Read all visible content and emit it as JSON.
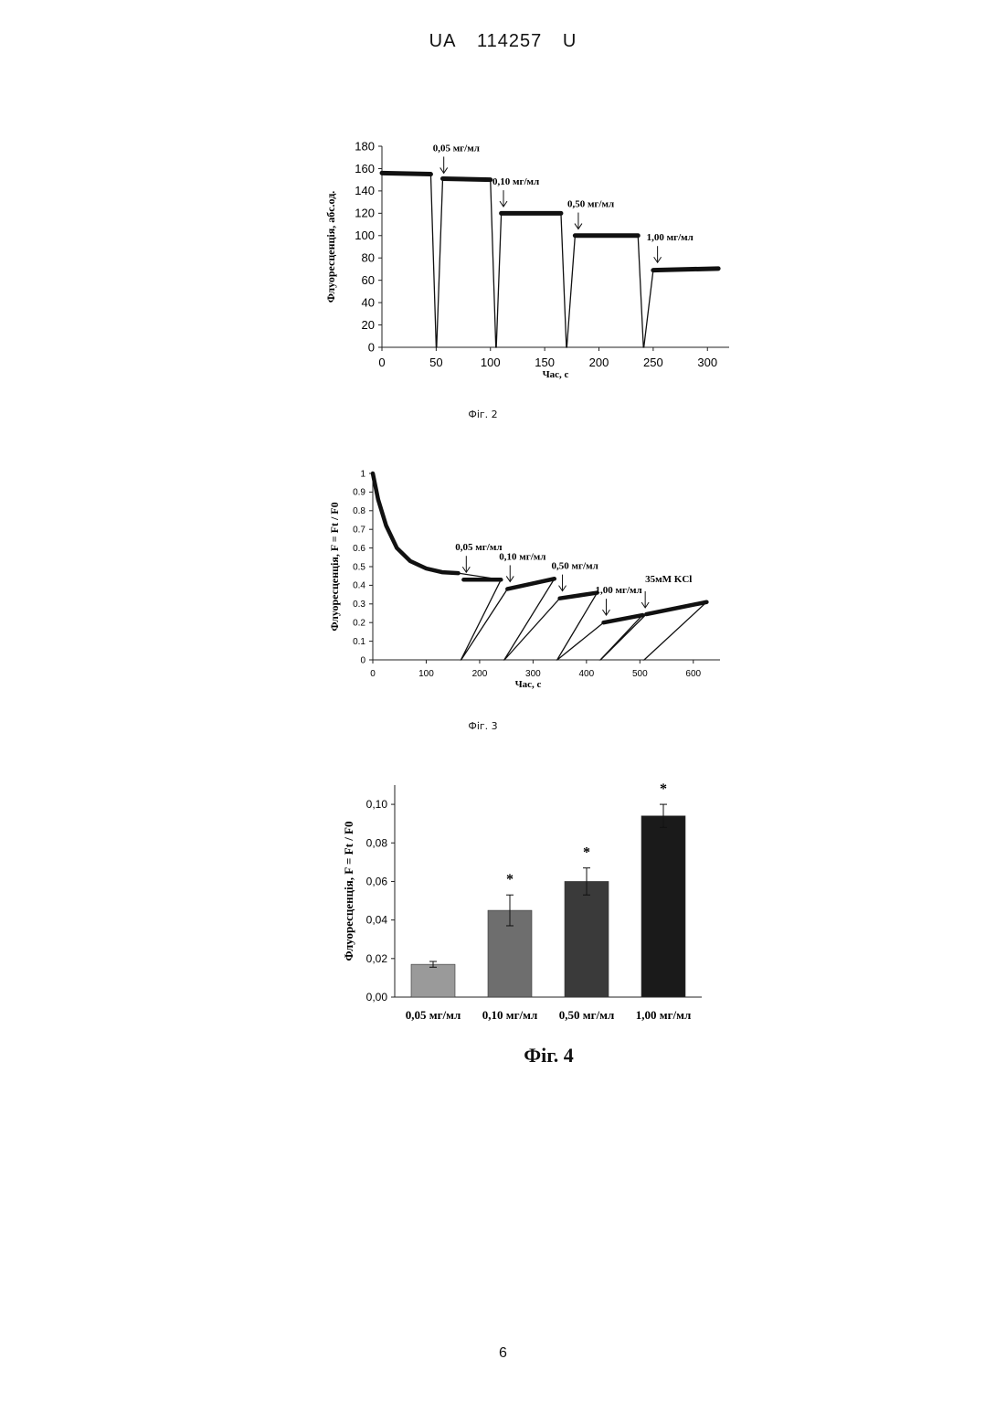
{
  "header": {
    "office": "UA",
    "number": "114257",
    "kind": "U"
  },
  "page_number": "6",
  "chart_data": [
    {
      "type": "line",
      "caption": "Фіг. 2",
      "xlabel": "Час, с",
      "ylabel": "Флуоресценція, абс.од.",
      "xlim": [
        0,
        320
      ],
      "ylim": [
        0,
        180
      ],
      "xticks": [
        0,
        50,
        100,
        150,
        200,
        250,
        300
      ],
      "yticks": [
        0,
        20,
        40,
        60,
        80,
        100,
        120,
        140,
        160,
        180
      ],
      "plateaus": [
        {
          "x": [
            0,
            45
          ],
          "y": [
            156,
            155
          ]
        },
        {
          "x": [
            56,
            100
          ],
          "y": [
            151,
            150
          ]
        },
        {
          "x": [
            110,
            165
          ],
          "y": [
            120,
            120
          ]
        },
        {
          "x": [
            178,
            236
          ],
          "y": [
            100,
            100
          ]
        },
        {
          "x": [
            250,
            310
          ],
          "y": [
            69,
            70.5
          ]
        }
      ],
      "drops": [
        {
          "from": 45,
          "bottom": 50,
          "to": 56
        },
        {
          "from": 100,
          "bottom": 105,
          "to": 110
        },
        {
          "from": 165,
          "bottom": 170,
          "to": 178
        },
        {
          "from": 236,
          "bottom": 241,
          "to": 250
        }
      ],
      "annotations": [
        {
          "text": "0,05 мг/мл",
          "x": 57,
          "y": 151
        },
        {
          "text": "0,10 мг/мл",
          "x": 112,
          "y": 121
        },
        {
          "text": "0,50 мг/мл",
          "x": 181,
          "y": 101
        },
        {
          "text": "1,00 мг/мл",
          "x": 254,
          "y": 71
        }
      ]
    },
    {
      "type": "line",
      "caption": "Фіг. 3",
      "xlabel": "Час, с",
      "ylabel": "Флуоресценція, F = Ft / F0",
      "xlim": [
        0,
        650
      ],
      "ylim": [
        0,
        1
      ],
      "xticks": [
        0,
        100,
        200,
        300,
        400,
        500,
        600
      ],
      "yticks": [
        0,
        0.1,
        0.2,
        0.3,
        0.4,
        0.5,
        0.6,
        0.7,
        0.8,
        0.9,
        1
      ],
      "decay": {
        "x": [
          0,
          10,
          25,
          45,
          70,
          100,
          130,
          160
        ],
        "y": [
          1.0,
          0.86,
          0.72,
          0.6,
          0.53,
          0.49,
          0.47,
          0.465
        ]
      },
      "plateaus": [
        {
          "x": [
            170,
            240
          ],
          "y": [
            0.43,
            0.43
          ]
        },
        {
          "x": [
            252,
            340
          ],
          "y": [
            0.38,
            0.435
          ]
        },
        {
          "x": [
            350,
            420
          ],
          "y": [
            0.33,
            0.36
          ]
        },
        {
          "x": [
            432,
            505
          ],
          "y": [
            0.2,
            0.24
          ]
        },
        {
          "x": [
            512,
            625
          ],
          "y": [
            0.245,
            0.31
          ]
        }
      ],
      "drops": [
        {
          "from": 160,
          "bottom": 165,
          "to": 170
        },
        {
          "from": 240,
          "bottom": 246,
          "to": 252
        },
        {
          "from": 340,
          "bottom": 345,
          "to": 350
        },
        {
          "from": 420,
          "bottom": 426,
          "to": 432
        },
        {
          "from": 505,
          "bottom": 508,
          "to": 512
        }
      ],
      "annotations": [
        {
          "text": "0,05 мг/мл",
          "x": 175,
          "y": 0.44
        },
        {
          "text": "0,10 мг/мл",
          "x": 257,
          "y": 0.39
        },
        {
          "text": "0,50 мг/мл",
          "x": 355,
          "y": 0.34
        },
        {
          "text": "1,00 мг/мл",
          "x": 437,
          "y": 0.21
        },
        {
          "text": "35мМ KCl",
          "x": 510,
          "y": 0.25
        }
      ]
    },
    {
      "type": "bar",
      "caption": "Фіг. 4",
      "ylabel": "Флуоресценція, F = Ft / F0",
      "categories": [
        "0,05 мг/мл",
        "0,10 мг/мл",
        "0,50 мг/мл",
        "1,00 мг/мл"
      ],
      "values": [
        0.017,
        0.045,
        0.06,
        0.094
      ],
      "errors": [
        0.0015,
        0.008,
        0.007,
        0.006
      ],
      "significant": [
        false,
        true,
        true,
        true
      ],
      "star": "*",
      "colors": [
        "#9a9a9a",
        "#6e6e6e",
        "#3a3a3a",
        "#1a1a1a"
      ],
      "ylim": [
        0,
        0.11
      ],
      "yticks": [
        "0,00",
        "0,02",
        "0,04",
        "0,06",
        "0,08",
        "0,10"
      ],
      "ytick_values": [
        0,
        0.02,
        0.04,
        0.06,
        0.08,
        0.1
      ]
    }
  ]
}
